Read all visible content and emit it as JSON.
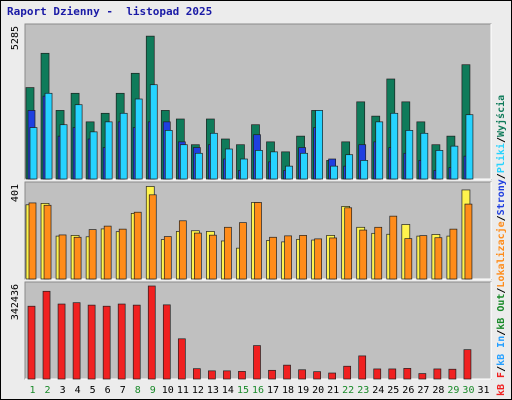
{
  "title": "Raport Dzienny -  listopad 2025",
  "colors": {
    "panel_bg": "#c0c0c0",
    "odwiedziny": "#0f7b5a",
    "strony": "#1f3fe0",
    "pliki": "#26d3ff",
    "wyjscia": "#fff34d",
    "wejscia": "#ff8c1a",
    "kb_out": "#f02020",
    "weekend_label": "#1a8a2a",
    "weekday_label": "#000000"
  },
  "legend": {
    "sep": "/",
    "items": [
      {
        "text": "Wyjścia",
        "color": "#0f7b5a"
      },
      {
        "text": "Pliki",
        "color": "#26d3ff"
      },
      {
        "text": "Strony",
        "color": "#1f3fe0"
      },
      {
        "text": "Lokalizacje",
        "color": "#ff8c1a"
      },
      {
        "text": "kB Out",
        "color": "#1a8a2a"
      },
      {
        "text": "kB In",
        "color": "#26a0ff"
      },
      {
        "text": "kB F",
        "color": "#f02020"
      }
    ]
  },
  "chart_data": [
    {
      "type": "bar",
      "panel": "hits",
      "ymax_label": "5285",
      "ylim": [
        0,
        5285
      ],
      "categories": [
        "1",
        "2",
        "3",
        "4",
        "5",
        "6",
        "7",
        "8",
        "9",
        "10",
        "11",
        "12",
        "13",
        "14",
        "15",
        "16",
        "17",
        "18",
        "19",
        "20",
        "21",
        "22",
        "23",
        "24",
        "25",
        "26",
        "27",
        "28",
        "29",
        "30",
        "31"
      ],
      "series": [
        {
          "key": "odwiedziny",
          "values": [
            3200,
            4400,
            2400,
            3000,
            2000,
            2300,
            3000,
            3700,
            5000,
            2400,
            2100,
            1200,
            2100,
            1400,
            1200,
            1900,
            1300,
            950,
            1500,
            2400,
            650,
            1300,
            2700,
            2200,
            3500,
            2700,
            2000,
            1200,
            1500,
            4000,
            0
          ]
        },
        {
          "key": "strony",
          "values": [
            2400,
            2900,
            1500,
            1800,
            1400,
            1100,
            2000,
            1800,
            2000,
            2000,
            1300,
            1100,
            1200,
            700,
            300,
            1550,
            600,
            300,
            1100,
            1800,
            700,
            450,
            1200,
            1300,
            1100,
            900,
            650,
            300,
            400,
            800,
            0
          ]
        },
        {
          "key": "pliki",
          "values": [
            1800,
            3000,
            1900,
            2600,
            1650,
            2000,
            2300,
            2800,
            3300,
            1700,
            1200,
            900,
            1600,
            1050,
            700,
            1000,
            950,
            450,
            900,
            2400,
            450,
            850,
            650,
            2000,
            2300,
            1700,
            1600,
            1000,
            1150,
            2250,
            0
          ]
        }
      ],
      "weekend_days": [
        1,
        2,
        8,
        9,
        15,
        16,
        22,
        23,
        29,
        30
      ]
    },
    {
      "type": "bar",
      "panel": "visits",
      "ymax_label": "401",
      "ylim": [
        0,
        401
      ],
      "series": [
        {
          "key": "wyjscia",
          "values": [
            320,
            326,
            185,
            188,
            182,
            216,
            204,
            283,
            399,
            170,
            205,
            208,
            205,
            164,
            133,
            330,
            166,
            160,
            171,
            168,
            188,
            313,
            223,
            197,
            193,
            235,
            185,
            192,
            185,
            384,
            0
          ]
        },
        {
          "key": "wejscia",
          "values": [
            328,
            318,
            190,
            180,
            213,
            228,
            215,
            288,
            363,
            183,
            251,
            198,
            189,
            223,
            243,
            330,
            180,
            186,
            188,
            173,
            177,
            307,
            211,
            223,
            271,
            174,
            187,
            178,
            215,
            323,
            0
          ]
        }
      ]
    },
    {
      "type": "bar",
      "panel": "kb",
      "ymax_label": "342436",
      "ylim": [
        0,
        342436
      ],
      "series": [
        {
          "key": "kb_out",
          "values": [
            268000,
            323000,
            276000,
            281000,
            272000,
            268000,
            276000,
            272000,
            342436,
            273000,
            148000,
            38000,
            30000,
            30000,
            28000,
            123000,
            32000,
            51000,
            34000,
            27000,
            22000,
            47000,
            85000,
            37000,
            37000,
            39000,
            20000,
            37000,
            36000,
            108000,
            0
          ]
        }
      ]
    }
  ]
}
